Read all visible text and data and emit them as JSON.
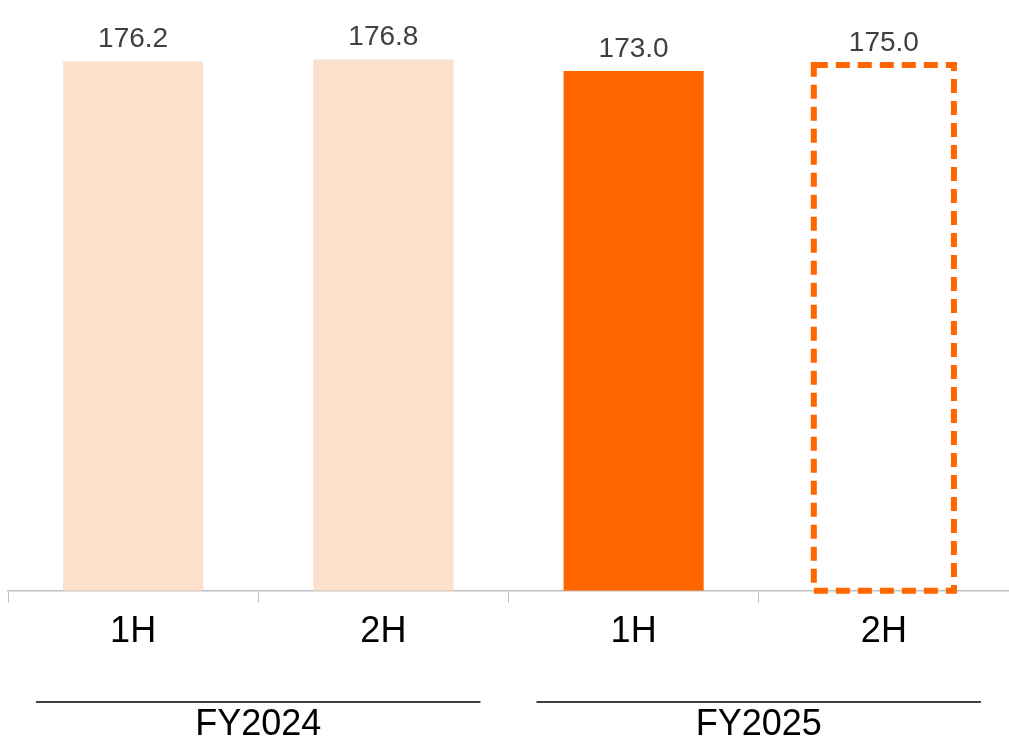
{
  "chart_data": {
    "type": "bar",
    "categories": [
      "1H",
      "2H",
      "1H",
      "2H"
    ],
    "series": [
      {
        "color": "#fde0cb",
        "colors": [
          "#fde0cb",
          "#fde0cb",
          "#ff6600",
          null
        ],
        "values": [
          176.2,
          176.8,
          173.0,
          null
        ],
        "value_labels": [
          "176.2",
          "176.8",
          "173.0",
          null
        ]
      },
      {
        "color": "#ff6600",
        "line_style": "dashed",
        "values": [
          null,
          null,
          null,
          175.0
        ],
        "value_labels": [
          null,
          null,
          null,
          "175.0"
        ]
      }
    ],
    "tick_labels": "x",
    "grid": false,
    "legend": false,
    "annotations": [
      "FY2024",
      "FY2025"
    ]
  }
}
